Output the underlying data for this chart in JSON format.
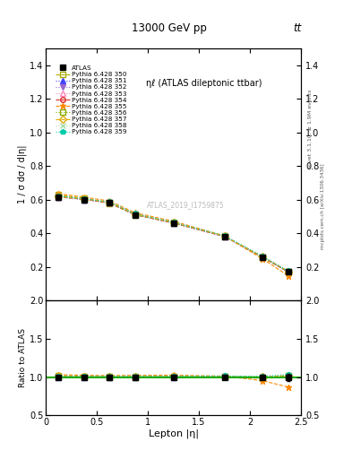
{
  "title_top": "13000 GeV pp",
  "title_right": "tt",
  "plot_title": "ηℓ (ATLAS dileptonic ttbar)",
  "ylabel_main": "1 / σ dσ / d|η|",
  "ylabel_ratio": "Ratio to ATLAS",
  "xlabel": "Lepton |η|",
  "watermark": "ATLAS_2019_I1759875",
  "right_label_top": "Rivet 3.1.10, ≥ 1.9M events",
  "right_label_bot": "mcplots.cern.ch [arXiv:1306.3436]",
  "x_values": [
    0.125,
    0.375,
    0.625,
    0.875,
    1.25,
    1.75,
    2.125,
    2.375
  ],
  "ylim_main": [
    0.0,
    1.5
  ],
  "ylim_ratio": [
    0.5,
    2.0
  ],
  "xlim": [
    0.0,
    2.5
  ],
  "yticks_main": [
    0.2,
    0.4,
    0.6,
    0.8,
    1.0,
    1.2,
    1.4
  ],
  "yticks_ratio": [
    0.5,
    1.0,
    1.5,
    2.0
  ],
  "xticks": [
    0,
    0.5,
    1.0,
    1.5,
    2.0,
    2.5
  ],
  "atlas_data": {
    "y": [
      0.615,
      0.6,
      0.58,
      0.51,
      0.46,
      0.38,
      0.26,
      0.17
    ],
    "yerr": [
      0.015,
      0.015,
      0.015,
      0.012,
      0.012,
      0.01,
      0.008,
      0.008
    ],
    "color": "#000000",
    "marker": "s",
    "label": "ATLAS",
    "markersize": 4
  },
  "mc_lines": [
    {
      "label": "Pythia 6.428 350",
      "y": [
        0.628,
        0.608,
        0.578,
        0.51,
        0.462,
        0.382,
        0.256,
        0.171
      ],
      "color": "#AAAA00",
      "marker": "s",
      "marker_fill": "none",
      "linestyle": "--"
    },
    {
      "label": "Pythia 6.428 351",
      "y": [
        0.616,
        0.601,
        0.581,
        0.511,
        0.461,
        0.381,
        0.258,
        0.171
      ],
      "color": "#4444FF",
      "marker": "^",
      "marker_fill": "full",
      "linestyle": ":"
    },
    {
      "label": "Pythia 6.428 352",
      "y": [
        0.616,
        0.601,
        0.581,
        0.511,
        0.461,
        0.381,
        0.258,
        0.171
      ],
      "color": "#9966CC",
      "marker": "v",
      "marker_fill": "full",
      "linestyle": ":"
    },
    {
      "label": "Pythia 6.428 353",
      "y": [
        0.617,
        0.602,
        0.582,
        0.512,
        0.462,
        0.382,
        0.259,
        0.172
      ],
      "color": "#FF88BB",
      "marker": "^",
      "marker_fill": "none",
      "linestyle": ":"
    },
    {
      "label": "Pythia 6.428 354",
      "y": [
        0.617,
        0.602,
        0.582,
        0.512,
        0.462,
        0.382,
        0.259,
        0.172
      ],
      "color": "#DD2222",
      "marker": "o",
      "marker_fill": "none",
      "linestyle": "--"
    },
    {
      "label": "Pythia 6.428 355",
      "y": [
        0.635,
        0.615,
        0.592,
        0.522,
        0.472,
        0.385,
        0.248,
        0.148
      ],
      "color": "#FF8800",
      "marker": "*",
      "marker_fill": "full",
      "linestyle": "--"
    },
    {
      "label": "Pythia 6.428 356",
      "y": [
        0.618,
        0.603,
        0.583,
        0.513,
        0.463,
        0.383,
        0.26,
        0.173
      ],
      "color": "#88AA00",
      "marker": "s",
      "marker_fill": "none",
      "linestyle": ":"
    },
    {
      "label": "Pythia 6.428 357",
      "y": [
        0.619,
        0.604,
        0.584,
        0.514,
        0.464,
        0.384,
        0.261,
        0.174
      ],
      "color": "#DDAA00",
      "marker": "D",
      "marker_fill": "none",
      "linestyle": "--"
    },
    {
      "label": "Pythia 6.428 358",
      "y": [
        0.62,
        0.605,
        0.585,
        0.515,
        0.465,
        0.385,
        0.262,
        0.175
      ],
      "color": "#AADDAA",
      "marker": "x",
      "marker_fill": "full",
      "linestyle": ":"
    },
    {
      "label": "Pythia 6.428 359",
      "y": [
        0.621,
        0.606,
        0.586,
        0.516,
        0.466,
        0.386,
        0.263,
        0.176
      ],
      "color": "#00CCAA",
      "marker": "p",
      "marker_fill": "full",
      "linestyle": ":"
    }
  ],
  "green_line_y": 1.0,
  "green_line_color": "#22AA00"
}
